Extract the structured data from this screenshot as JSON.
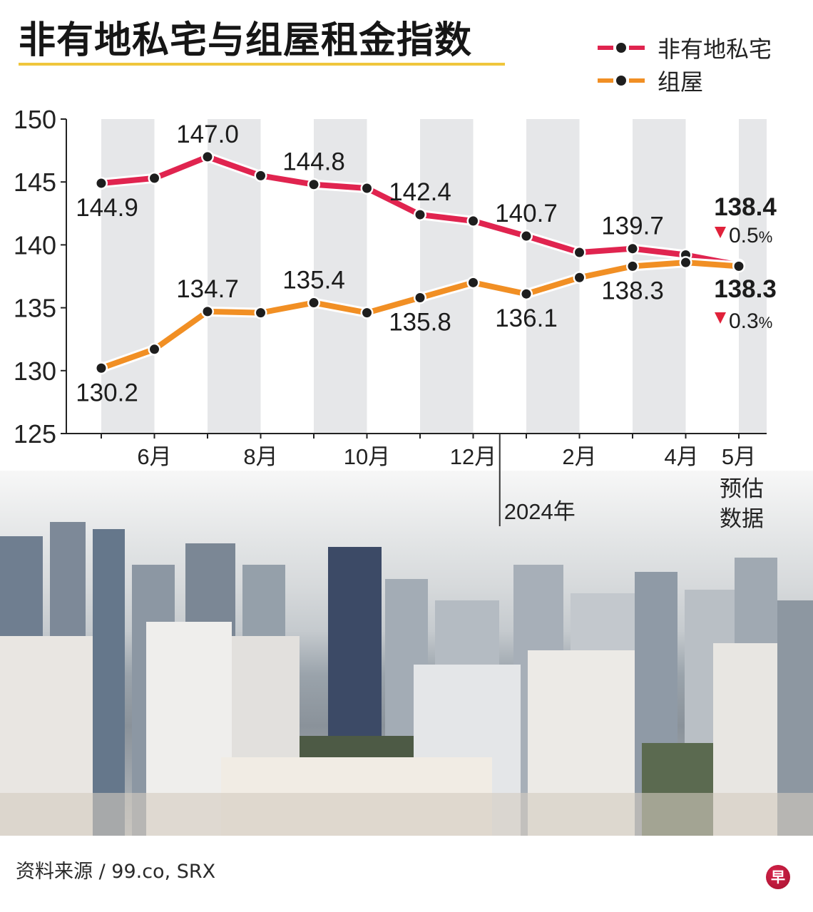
{
  "header": {
    "title": "非有地私宅与组屋租金指数"
  },
  "legend": {
    "items": [
      {
        "label": "非有地私宅",
        "color": "#e0244f"
      },
      {
        "label": "组屋",
        "color": "#f18f24"
      }
    ]
  },
  "colors": {
    "private": "#e0244f",
    "hdb": "#f18f24",
    "stripe": "#e6e7e9",
    "marker": "#1e1e1e",
    "down_arrow": "#e0213a",
    "title_rule": "#f0c63c"
  },
  "chart_data": {
    "type": "line",
    "title": "非有地私宅与组屋租金指数",
    "xlabel": "",
    "ylabel": "",
    "ylim": [
      125,
      150
    ],
    "yticks": [
      "125",
      "130",
      "135",
      "140",
      "145",
      "150"
    ],
    "x": [
      "2023-05",
      "2023-06",
      "2023-07",
      "2023-08",
      "2023-09",
      "2023-10",
      "2023-11",
      "2023-12",
      "2024-01",
      "2024-02",
      "2024-03",
      "2024-04",
      "2024-05"
    ],
    "xtick_labels": [
      {
        "index": 1,
        "label": "6月"
      },
      {
        "index": 3,
        "label": "8月"
      },
      {
        "index": 5,
        "label": "10月"
      },
      {
        "index": 7,
        "label": "12月"
      },
      {
        "index": 9,
        "label": "2月"
      },
      {
        "index": 11,
        "label": "4月"
      },
      {
        "index": 12,
        "label": "5月"
      }
    ],
    "year_divider": {
      "after_index": 7,
      "label": "2024年"
    },
    "estimate_note": {
      "index": 12,
      "lines": [
        "预估",
        "数据"
      ]
    },
    "grid": false,
    "alternating_stripes": true,
    "legend_position": "top-right",
    "series": [
      {
        "name": "非有地私宅",
        "values": [
          144.9,
          145.3,
          147.0,
          145.5,
          144.8,
          144.5,
          142.4,
          141.9,
          140.7,
          139.4,
          139.7,
          139.2,
          138.4
        ],
        "labels": [
          {
            "index": 0,
            "text": "144.9",
            "pos": "below"
          },
          {
            "index": 2,
            "text": "147.0",
            "pos": "above"
          },
          {
            "index": 4,
            "text": "144.8",
            "pos": "above"
          },
          {
            "index": 6,
            "text": "142.4",
            "pos": "above"
          },
          {
            "index": 8,
            "text": "140.7",
            "pos": "above"
          },
          {
            "index": 10,
            "text": "139.7",
            "pos": "above"
          }
        ],
        "final": {
          "value": "138.4",
          "change": "0.5",
          "change_unit": "%",
          "direction": "down"
        }
      },
      {
        "name": "组屋",
        "values": [
          130.2,
          131.7,
          134.7,
          134.6,
          135.4,
          134.6,
          135.8,
          137.0,
          136.1,
          137.4,
          138.3,
          138.6,
          138.3
        ],
        "labels": [
          {
            "index": 0,
            "text": "130.2",
            "pos": "below"
          },
          {
            "index": 2,
            "text": "134.7",
            "pos": "above"
          },
          {
            "index": 4,
            "text": "135.4",
            "pos": "above"
          },
          {
            "index": 6,
            "text": "135.8",
            "pos": "below"
          },
          {
            "index": 8,
            "text": "136.1",
            "pos": "below"
          },
          {
            "index": 10,
            "text": "138.3",
            "pos": "below"
          }
        ],
        "final": {
          "value": "138.3",
          "change": "0.3",
          "change_unit": "%",
          "direction": "down"
        }
      }
    ]
  },
  "footer": {
    "source": "资料来源 / 99.co, SRX",
    "logo_glyph": "早"
  }
}
